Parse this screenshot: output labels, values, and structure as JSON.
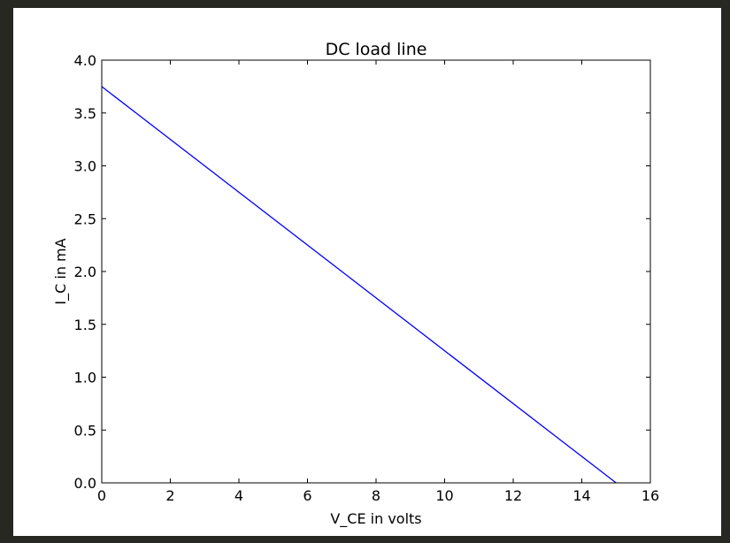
{
  "chart_data": {
    "type": "line",
    "title": "DC load line",
    "xlabel": "V_CE in volts",
    "ylabel": "I_C in mA",
    "xlim": [
      0,
      16
    ],
    "ylim": [
      0,
      4.0
    ],
    "xticks": [
      0,
      2,
      4,
      6,
      8,
      10,
      12,
      14,
      16
    ],
    "xtick_labels": [
      "0",
      "2",
      "4",
      "6",
      "8",
      "10",
      "12",
      "14",
      "16"
    ],
    "yticks": [
      0,
      0.5,
      1.0,
      1.5,
      2.0,
      2.5,
      3.0,
      3.5,
      4.0
    ],
    "ytick_labels": [
      "0.0",
      "0.5",
      "1.0",
      "1.5",
      "2.0",
      "2.5",
      "3.0",
      "3.5",
      "4.0"
    ],
    "grid": false,
    "series": [
      {
        "x": [
          0,
          15
        ],
        "y": [
          3.75,
          0
        ],
        "color": "#0000ff"
      }
    ]
  }
}
